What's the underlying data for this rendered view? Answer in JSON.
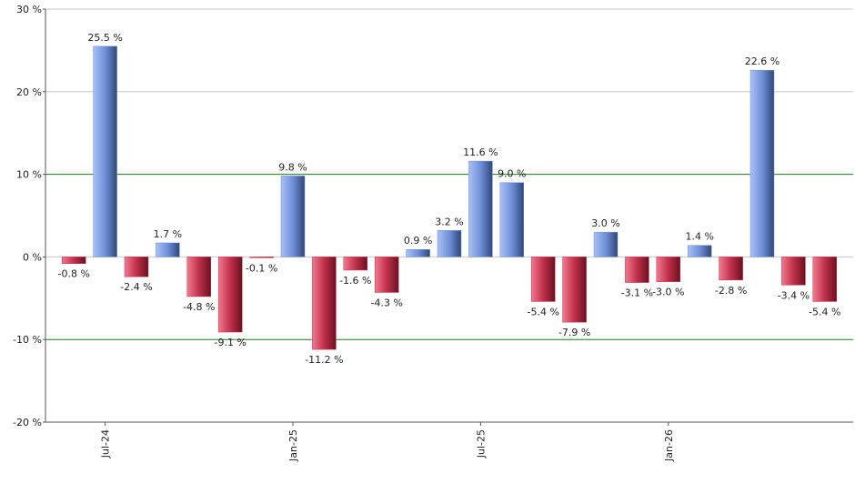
{
  "chart_data": {
    "type": "bar",
    "categories": [
      null,
      "Jul-24",
      null,
      null,
      null,
      null,
      null,
      "Jan-25",
      null,
      null,
      null,
      null,
      null,
      "Jul-25",
      null,
      null,
      null,
      null,
      null,
      "Jan-26",
      null,
      null,
      null,
      null,
      null
    ],
    "values": [
      -0.8,
      25.5,
      -2.4,
      1.7,
      -4.8,
      -9.1,
      -0.1,
      9.8,
      -11.2,
      -1.6,
      -4.3,
      0.9,
      3.2,
      11.6,
      9.0,
      -5.4,
      -7.9,
      3.0,
      -3.1,
      -3.0,
      1.4,
      -2.8,
      22.6,
      -3.4,
      -5.4
    ],
    "value_labels": [
      "-0.8 %",
      "25.5 %",
      "-2.4 %",
      "1.7 %",
      "-4.8 %",
      "-9.1 %",
      "-0.1 %",
      "9.8 %",
      "-11.2 %",
      "-1.6 %",
      "-4.3 %",
      "0.9 %",
      "3.2 %",
      "11.6 %",
      "9.0 %",
      "-5.4 %",
      "-7.9 %",
      "3.0 %",
      "-3.1 %",
      "-3.0 %",
      "1.4 %",
      "-2.8 %",
      "22.6 %",
      "-3.4 %",
      "-5.4 %"
    ],
    "positive_color": "#6f8fd8",
    "negative_color": "#c0304a",
    "ylim": [
      -20,
      30
    ],
    "yticks": [
      {
        "value": -20,
        "label": "-20 %"
      },
      {
        "value": -10,
        "label": "-10 %"
      },
      {
        "value": 0,
        "label": "0 %"
      },
      {
        "value": 10,
        "label": "10 %"
      },
      {
        "value": 20,
        "label": "20 %"
      },
      {
        "value": 30,
        "label": "30 %"
      }
    ],
    "grid": true,
    "grid_color": "#c8c8c8",
    "reference_lines": {
      "values": [
        -10,
        10
      ],
      "color": "#1e7a1e"
    }
  }
}
